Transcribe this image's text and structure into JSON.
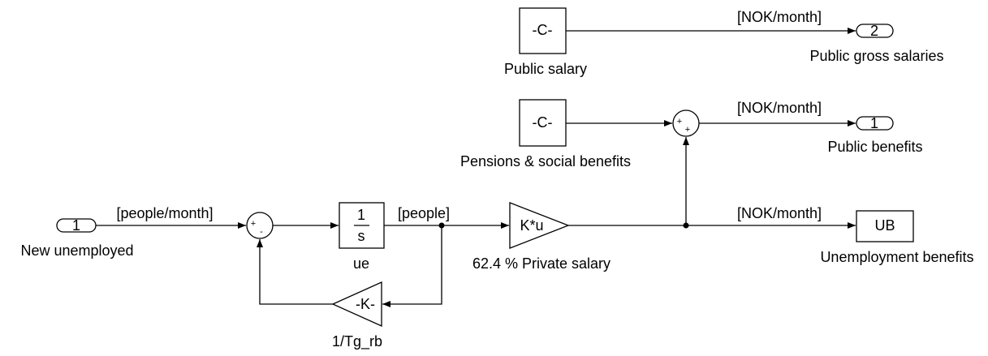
{
  "nodes": [
    {
      "text": "-C-",
      "label": "Public salary"
    },
    {
      "text": "-C-",
      "label": "Pensions & social benefits"
    },
    {
      "text": "2",
      "label": "Public gross salaries"
    },
    {
      "text": "1",
      "label": "Public benefits"
    },
    {
      "text": "1",
      "label": "New unemployed"
    },
    {
      "numerator": "1",
      "denominator": "s",
      "label": "ue"
    },
    {
      "text": "-K-",
      "label": "1/Tg_rb"
    },
    {
      "text": "K*u",
      "label": "62.4 % Private salary"
    },
    {
      "text": "UB",
      "label": "Unemployment benefits"
    },
    {
      "signs": [
        "+",
        "-"
      ]
    },
    {
      "signs": [
        "+",
        "+"
      ]
    }
  ],
  "signals": [
    "[NOK/month]",
    "[NOK/month]",
    "[NOK/month]",
    "[people/month]",
    "[people]"
  ]
}
